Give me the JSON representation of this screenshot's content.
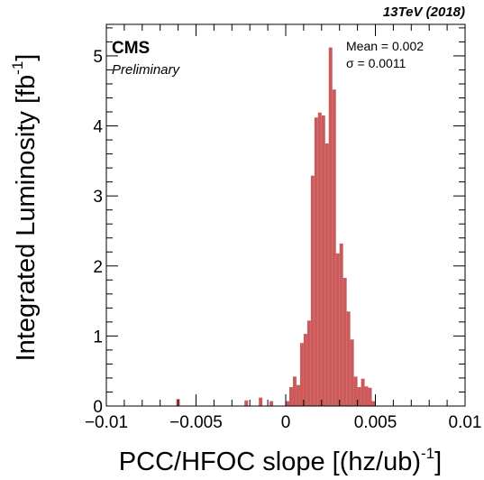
{
  "chart_data": {
    "type": "bar",
    "subtype": "histogram",
    "experiment_label": "CMS",
    "status_label": "Preliminary",
    "energy_label": "13TeV (2018)",
    "stats": {
      "mean": "Mean = 0.002",
      "sigma": "σ = 0.0011"
    },
    "xlabel": "PCC/HFOC slope [(hz/ub)",
    "xlabel_exponent": "-1",
    "xlabel_close": "]",
    "ylabel": "Integrated Luminosity [fb",
    "ylabel_exponent": "-1",
    "ylabel_close": "]",
    "xlim": [
      -0.01,
      0.01
    ],
    "ylim": [
      0,
      5.45
    ],
    "x_ticks": [
      {
        "value": -0.01,
        "label": "−0.01"
      },
      {
        "value": -0.005,
        "label": "−0.005"
      },
      {
        "value": 0,
        "label": "0"
      },
      {
        "value": 0.005,
        "label": "0.005"
      },
      {
        "value": 0.01,
        "label": "0.01"
      }
    ],
    "y_ticks": [
      {
        "value": 0,
        "label": "0"
      },
      {
        "value": 1,
        "label": "1"
      },
      {
        "value": 2,
        "label": "2"
      },
      {
        "value": 3,
        "label": "3"
      },
      {
        "value": 4,
        "label": "4"
      },
      {
        "value": 5,
        "label": "5"
      }
    ],
    "grid": false,
    "bar_color": "#cc5a5a",
    "bin_width": 0.0002,
    "bins": [
      {
        "x": -0.0061,
        "value": 0.1
      },
      {
        "x": -0.0023,
        "value": 0.08
      },
      {
        "x": -0.0015,
        "value": 0.12
      },
      {
        "x": -0.0009,
        "value": 0.07
      },
      {
        "x": 0.0,
        "value": 0.07
      },
      {
        "x": 0.0002,
        "value": 0.27
      },
      {
        "x": 0.0004,
        "value": 0.42
      },
      {
        "x": 0.0006,
        "value": 0.3
      },
      {
        "x": 0.0008,
        "value": 0.9
      },
      {
        "x": 0.001,
        "value": 1.03
      },
      {
        "x": 0.0012,
        "value": 1.22
      },
      {
        "x": 0.0014,
        "value": 3.29
      },
      {
        "x": 0.0016,
        "value": 4.12
      },
      {
        "x": 0.0018,
        "value": 4.19
      },
      {
        "x": 0.002,
        "value": 4.15
      },
      {
        "x": 0.0022,
        "value": 3.75
      },
      {
        "x": 0.0024,
        "value": 5.12
      },
      {
        "x": 0.0026,
        "value": 4.52
      },
      {
        "x": 0.0028,
        "value": 2.18
      },
      {
        "x": 0.003,
        "value": 2.32
      },
      {
        "x": 0.0032,
        "value": 1.83
      },
      {
        "x": 0.0034,
        "value": 1.35
      },
      {
        "x": 0.0036,
        "value": 0.95
      },
      {
        "x": 0.0038,
        "value": 0.42
      },
      {
        "x": 0.004,
        "value": 0.27
      },
      {
        "x": 0.0042,
        "value": 0.39
      },
      {
        "x": 0.0044,
        "value": 0.28
      },
      {
        "x": 0.0046,
        "value": 0.26
      },
      {
        "x": 0.0048,
        "value": 0.07
      }
    ]
  }
}
